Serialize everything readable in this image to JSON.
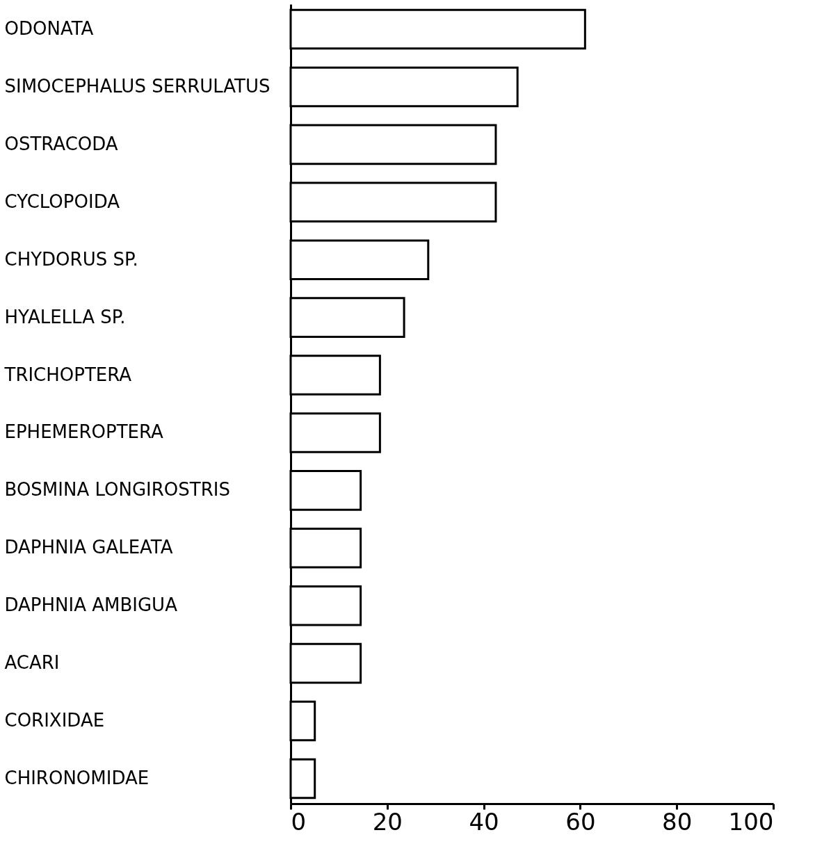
{
  "chart_data": {
    "type": "bar",
    "orientation": "horizontal",
    "categories": [
      "ODONATA",
      "SIMOCEPHALUS SERRULATUS",
      "OSTRACODA",
      "CYCLOPOIDA",
      "CHYDORUS SP.",
      "HYALELLA SP.",
      "TRICHOPTERA",
      "EPHEMEROPTERA",
      "BOSMINA LONGIROSTRIS",
      "DAPHNIA GALEATA",
      "DAPHNIA AMBIGUA",
      "ACARI",
      "CORIXIDAE",
      "CHIRONOMIDAE"
    ],
    "values": [
      61,
      47,
      42.5,
      42.5,
      28.5,
      23.5,
      18.5,
      18.5,
      14.5,
      14.5,
      14.5,
      14.5,
      5,
      5
    ],
    "color": "#ffffff",
    "xlim": [
      0,
      100
    ],
    "xticks": [
      0,
      20,
      40,
      60,
      80,
      100
    ],
    "grid": false
  }
}
